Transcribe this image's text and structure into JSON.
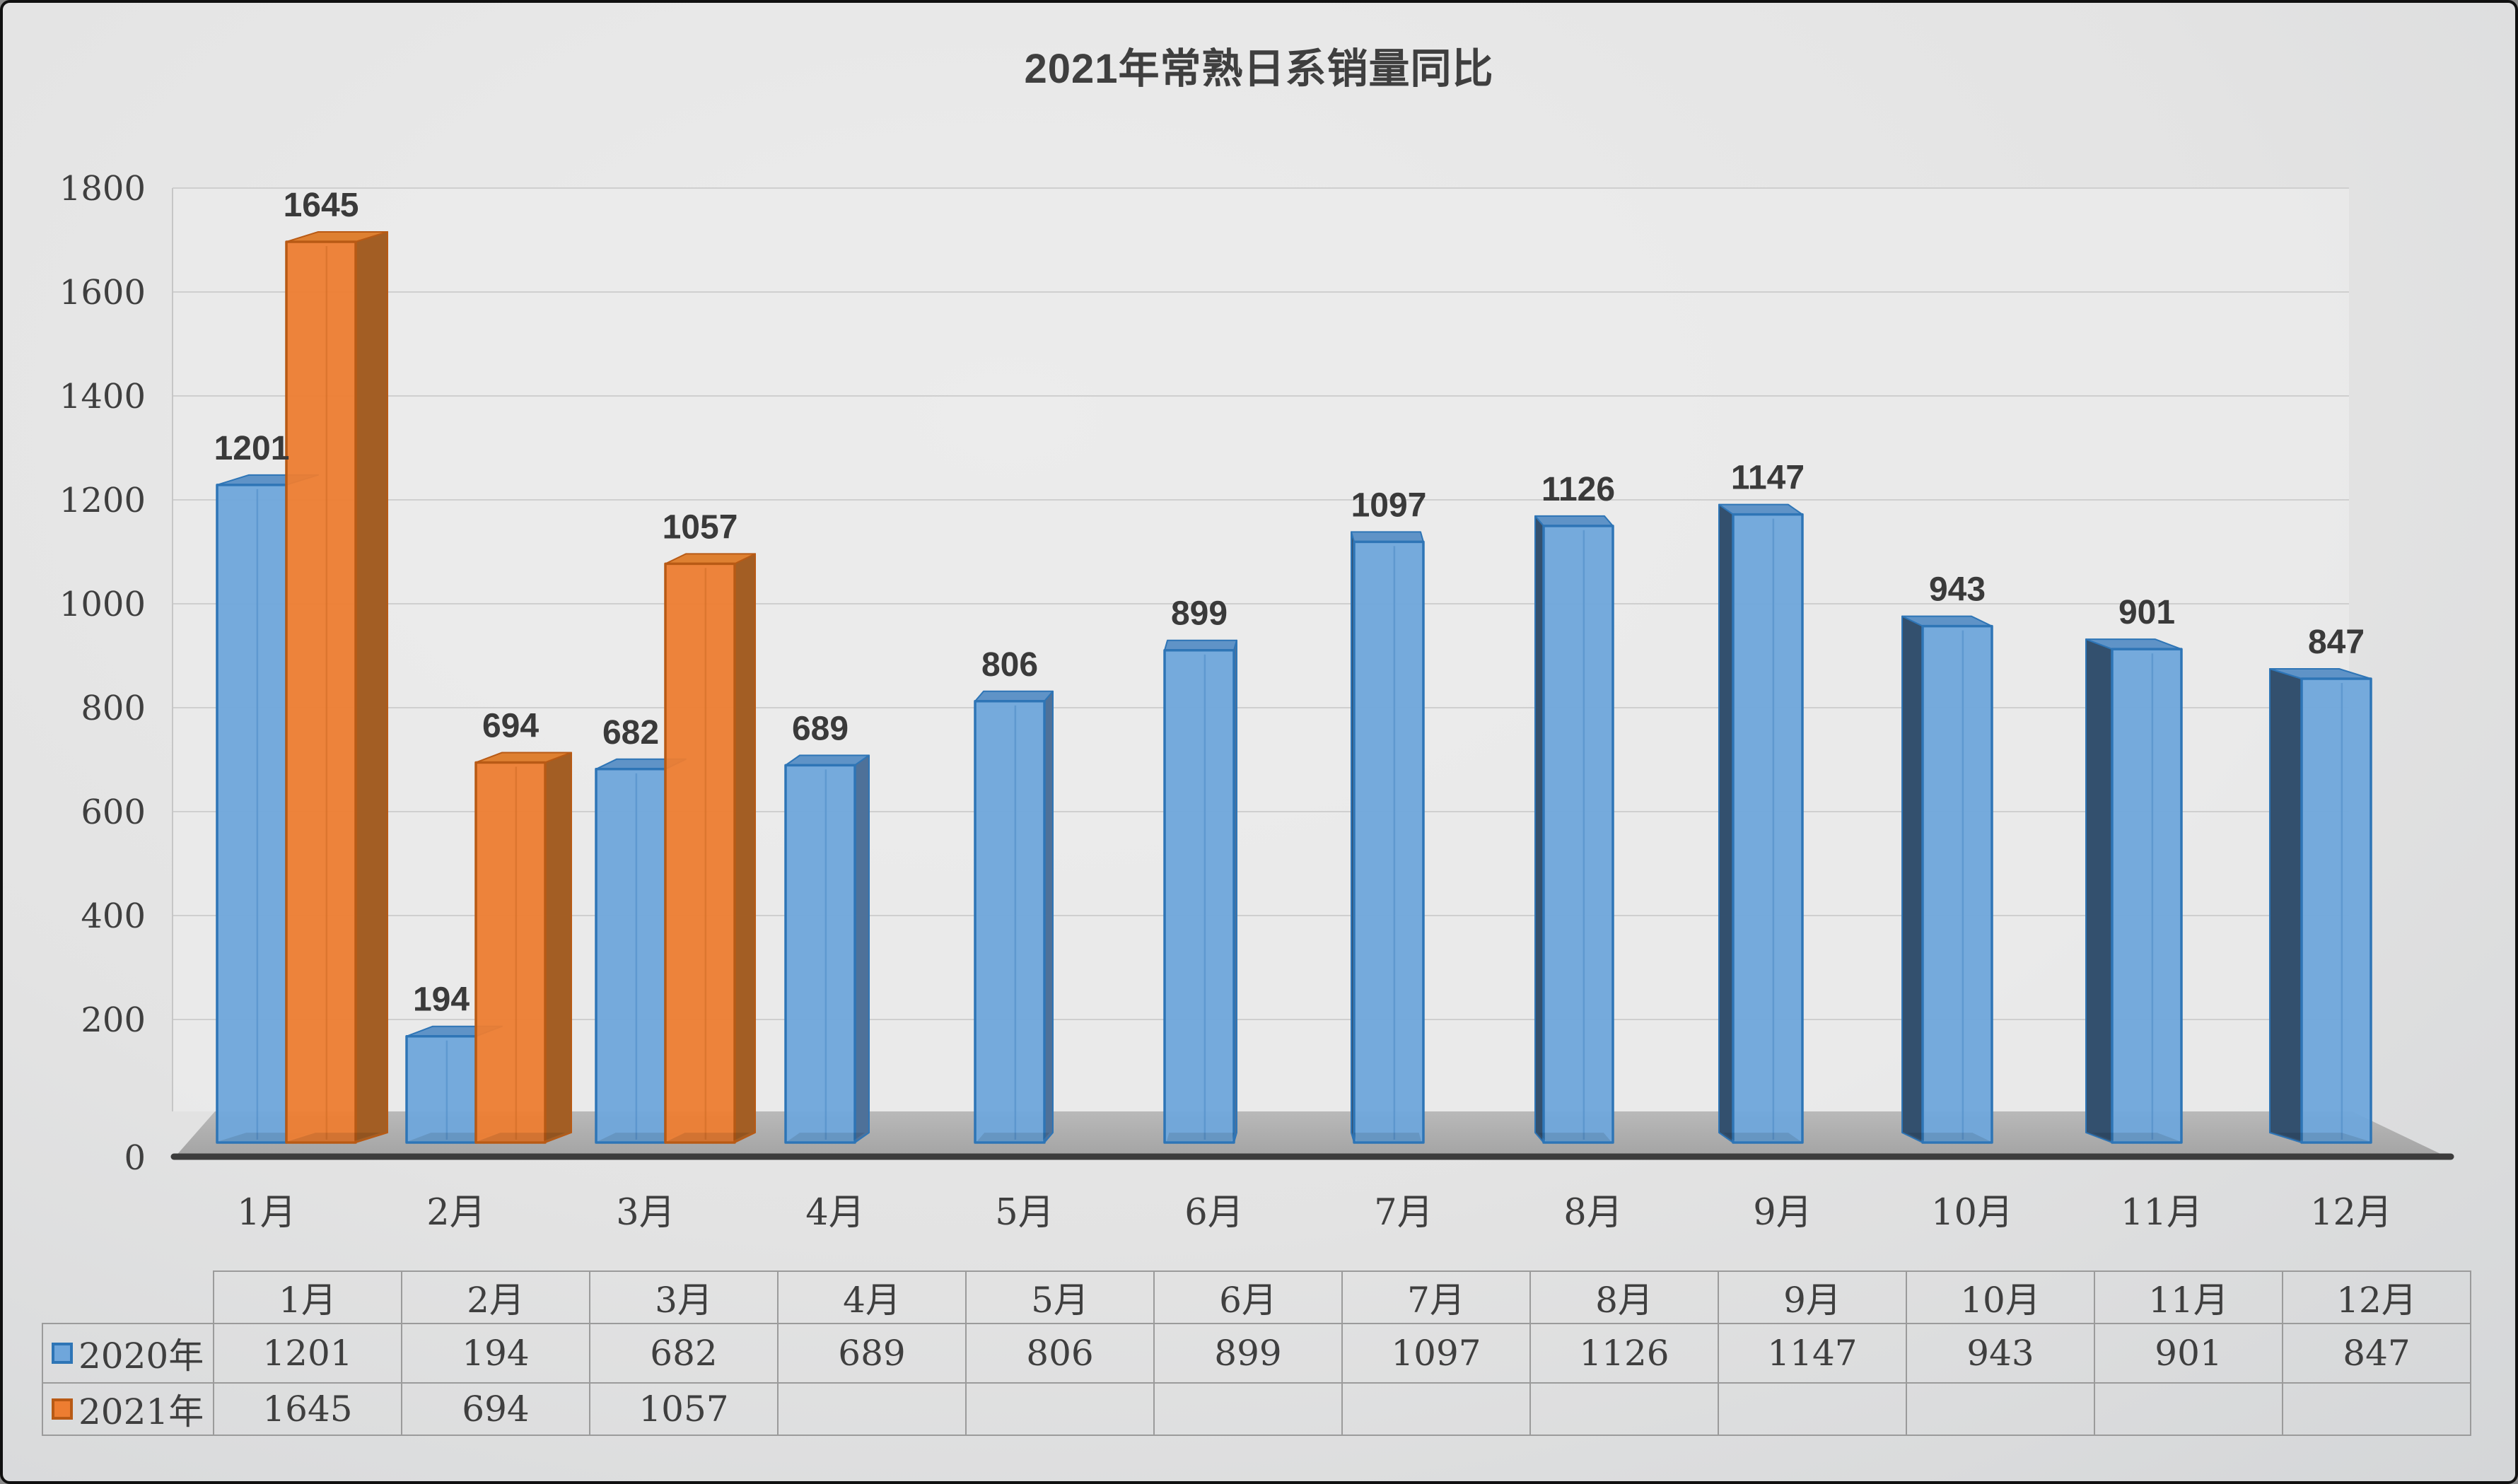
{
  "chart_data": {
    "type": "bar",
    "effect": "3d-column",
    "title": "2021年常熟日系销量同比",
    "categories": [
      "1月",
      "2月",
      "3月",
      "4月",
      "5月",
      "6月",
      "7月",
      "8月",
      "9月",
      "10月",
      "11月",
      "12月"
    ],
    "series": [
      {
        "name": "2020年",
        "values": [
          1201,
          194,
          682,
          689,
          806,
          899,
          1097,
          1126,
          1147,
          943,
          901,
          847
        ],
        "colors": {
          "front": "#6FA6DB",
          "border": "#2E75B6",
          "top": "#5F93C7",
          "side_right": "#4E7199",
          "side_left": "#33506E"
        }
      },
      {
        "name": "2021年",
        "values": [
          1645,
          694,
          1057,
          null,
          null,
          null,
          null,
          null,
          null,
          null,
          null,
          null
        ],
        "colors": {
          "front": "#ED7D31",
          "border": "#B85A15",
          "top": "#DE8031",
          "side_right": "#A35E24",
          "side_left": "#8C4D1D"
        }
      }
    ],
    "ylim": [
      0,
      1800
    ],
    "y_tick_step": 200,
    "y_tick_labels": [
      "0",
      "200",
      "400",
      "600",
      "800",
      "1000",
      "1200",
      "1400",
      "1600",
      "1800"
    ],
    "grid": true,
    "data_labels": true,
    "legend_position": "data-table-left",
    "data_table_shown": true,
    "palette": {
      "wall": "#EBEBEB",
      "gridline": "#CFCFCF",
      "wall_edge": "#C6C6C6",
      "floor_top": "#B9B9B9",
      "floor_bottom": "#A3A3A3",
      "axis_line": "#3C3C3C",
      "axis_text": "#3F3F3F",
      "label_text": "#3A3A3A",
      "table_border": "#9B9B9B",
      "inner_shade": "#000000"
    }
  }
}
